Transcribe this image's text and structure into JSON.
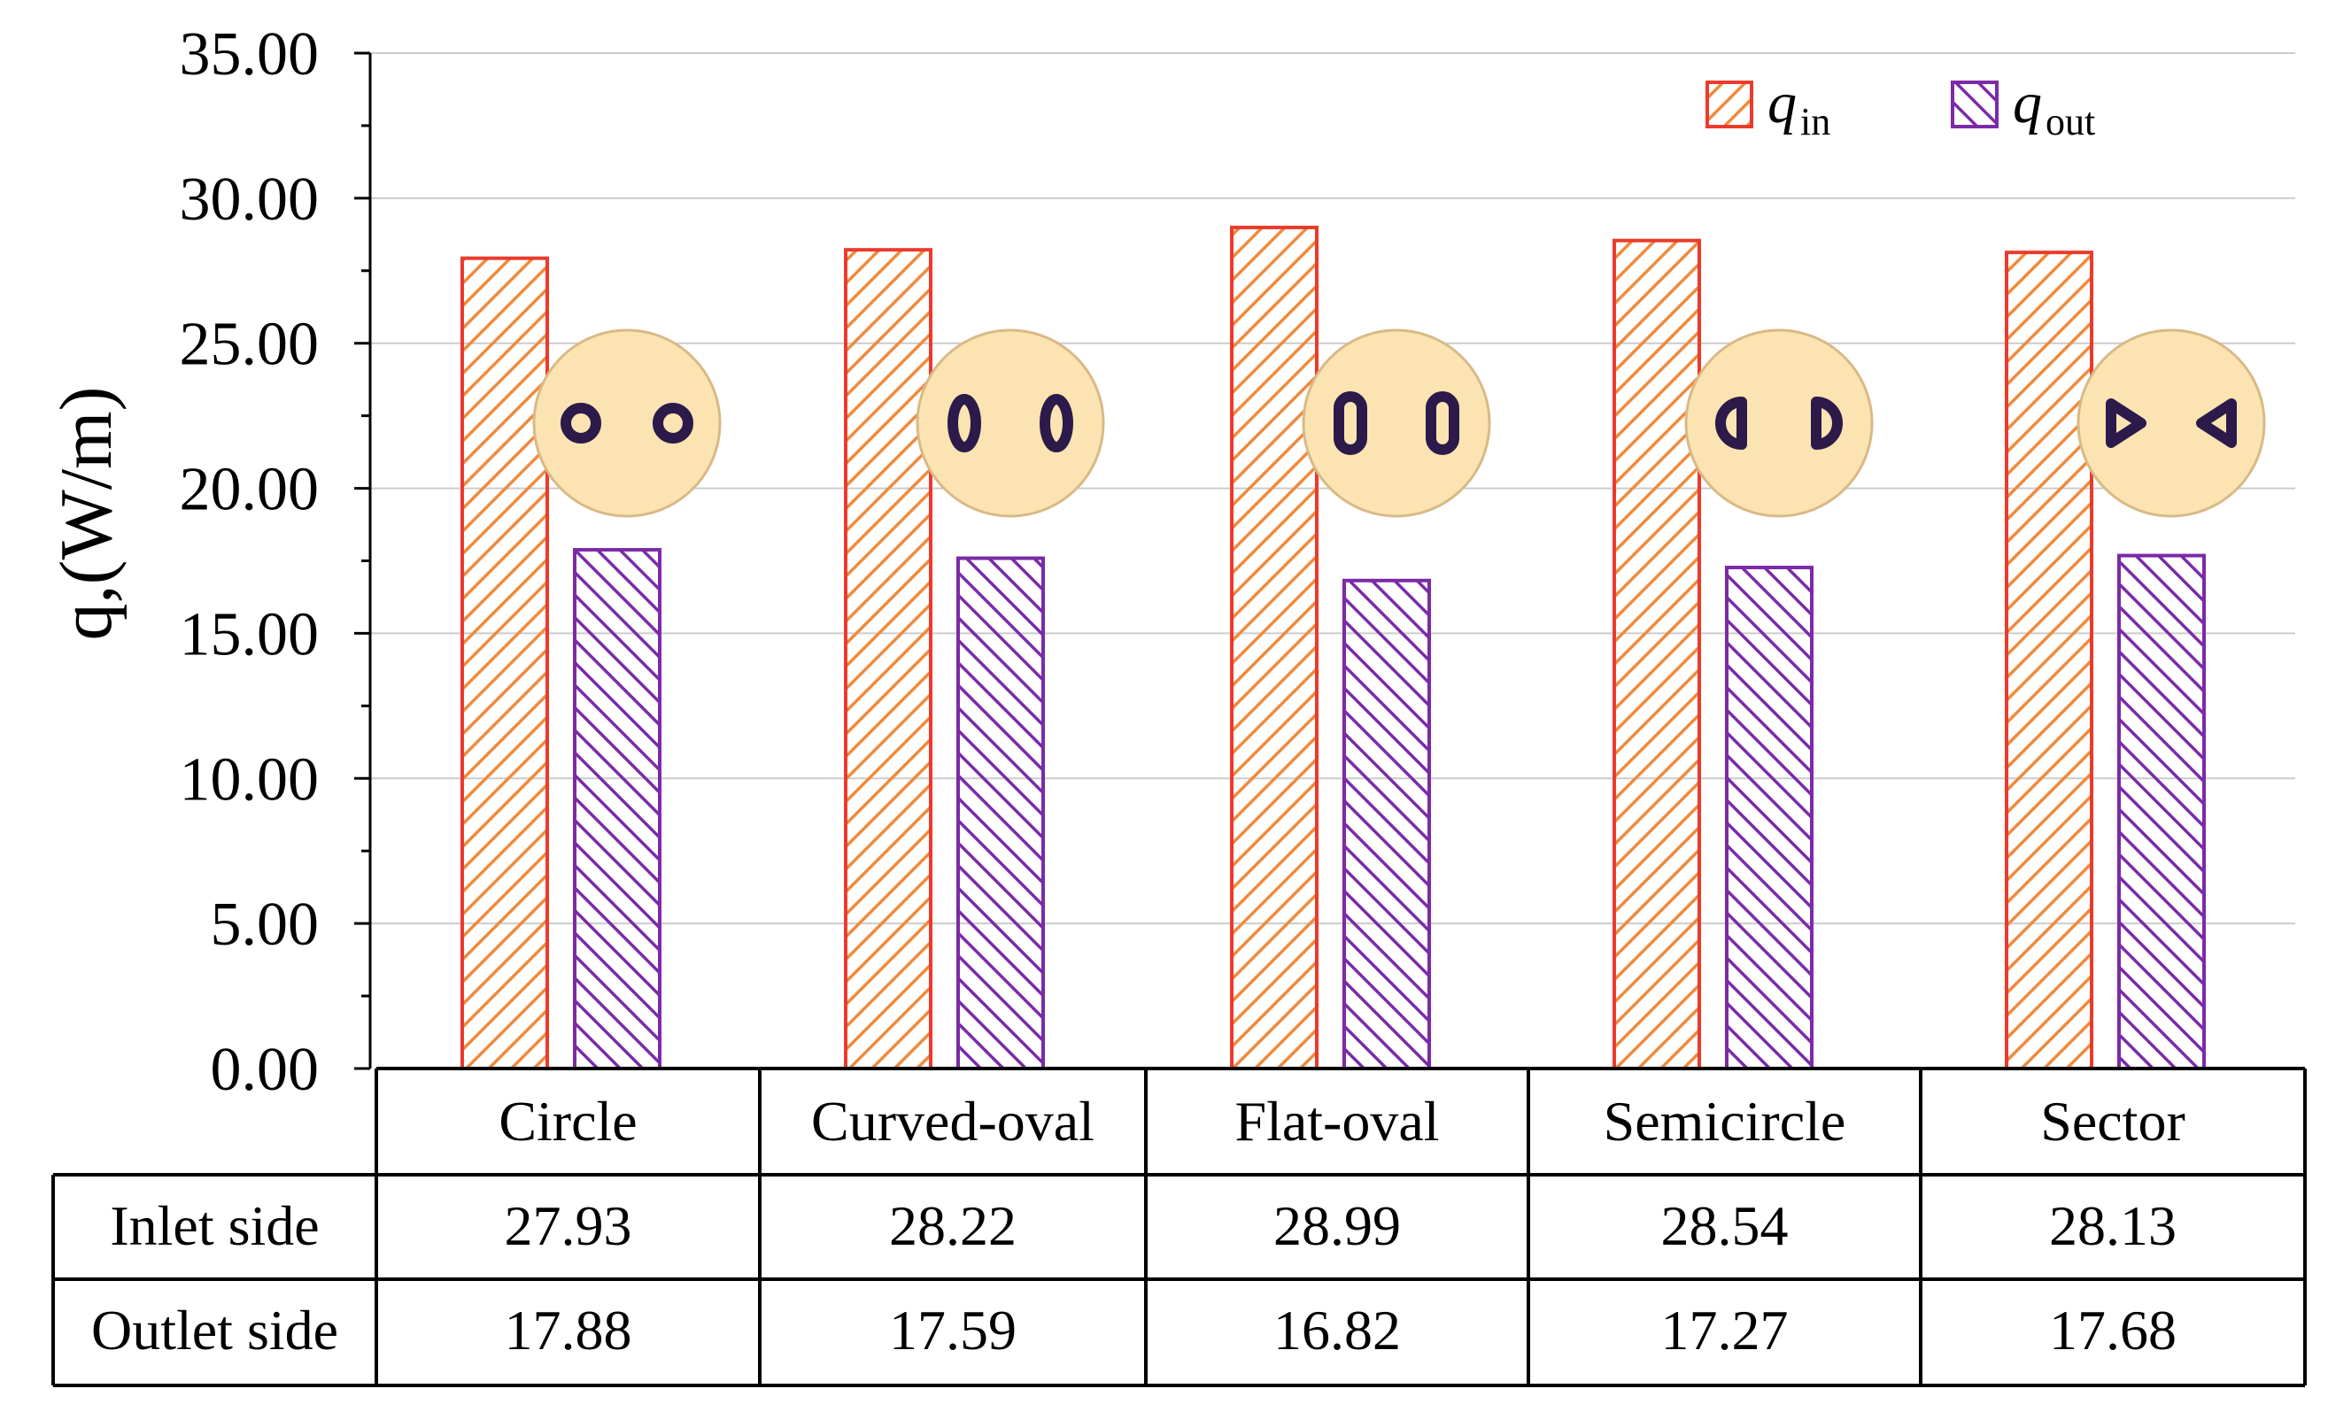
{
  "chart_data": {
    "type": "bar",
    "title": "",
    "xlabel": "",
    "ylabel": "q,(W/m)",
    "ylim": [
      0,
      35
    ],
    "yticks": [
      "0.00",
      "5.00",
      "10.00",
      "15.00",
      "20.00",
      "25.00",
      "30.00",
      "35.00"
    ],
    "grid": true,
    "legend_position": "top-right",
    "categories": [
      "Circle",
      "Curved-oval",
      "Flat-oval",
      "Semicircle",
      "Sector"
    ],
    "series": [
      {
        "name": "q_in",
        "legend_main": "q",
        "legend_sub": "in",
        "row_label": "Inlet side",
        "values": [
          27.93,
          28.22,
          28.99,
          28.54,
          28.13
        ],
        "value_labels": [
          "27.93",
          "28.22",
          "28.99",
          "28.54",
          "28.13"
        ],
        "stroke": "#ea3b2c",
        "hatch": "#f08a3c"
      },
      {
        "name": "q_out",
        "legend_main": "q",
        "legend_sub": "out",
        "row_label": "Outlet side",
        "values": [
          17.88,
          17.59,
          16.82,
          17.27,
          17.68
        ],
        "value_labels": [
          "17.88",
          "17.59",
          "16.82",
          "17.27",
          "17.68"
        ],
        "stroke": "#7b2aa8",
        "hatch": "#7b2aa8"
      }
    ],
    "insets": [
      "circle",
      "curved-oval",
      "flat-oval",
      "semicircle",
      "sector"
    ]
  },
  "colors": {
    "inset_fill": "#fbe4b1",
    "inset_stroke": "#d9b987",
    "tube_stroke": "#2b1a4a",
    "grid": "#cccccc"
  }
}
